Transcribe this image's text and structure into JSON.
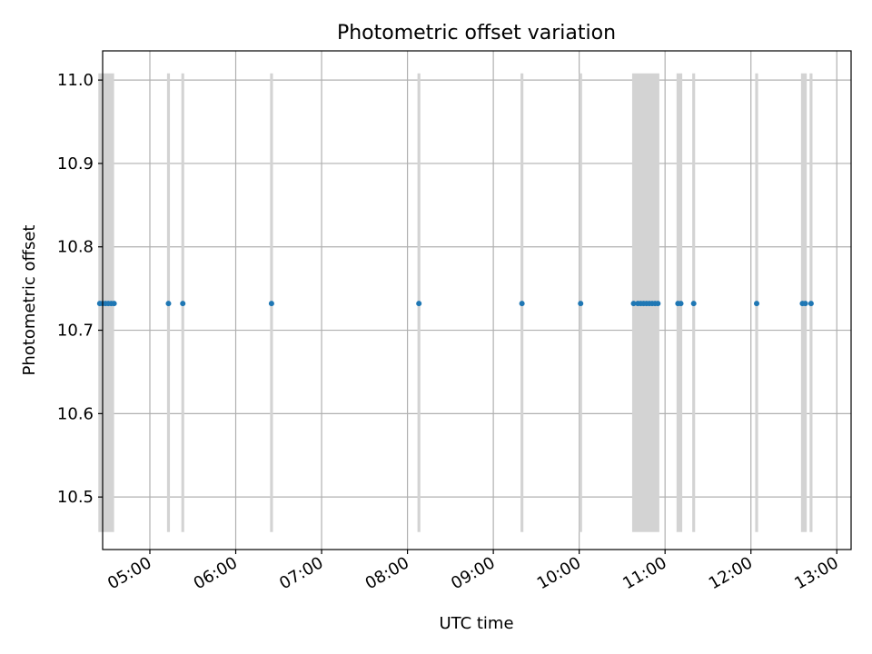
{
  "chart_data": {
    "type": "scatter",
    "title": "Photometric offset variation",
    "xlabel": "UTC time",
    "ylabel": "Photometric offset",
    "grid": true,
    "xlim": [
      "04:27",
      "13:10"
    ],
    "ylim": [
      10.437,
      11.035
    ],
    "x_ticks": [
      "05:00",
      "06:00",
      "07:00",
      "08:00",
      "09:00",
      "10:00",
      "11:00",
      "12:00",
      "13:00"
    ],
    "y_ticks": [
      10.5,
      10.6,
      10.7,
      10.8,
      10.9,
      11.0
    ],
    "point_color": "#1f77b4",
    "band_color": "#d3d3d3",
    "band_range": [
      10.458,
      11.008
    ],
    "points": [
      {
        "t": "04:25",
        "y": 10.732
      },
      {
        "t": "04:27",
        "y": 10.732
      },
      {
        "t": "04:29",
        "y": 10.732
      },
      {
        "t": "04:31",
        "y": 10.732
      },
      {
        "t": "04:33",
        "y": 10.732
      },
      {
        "t": "04:35",
        "y": 10.732
      },
      {
        "t": "05:13",
        "y": 10.732
      },
      {
        "t": "05:23",
        "y": 10.732
      },
      {
        "t": "06:25",
        "y": 10.732
      },
      {
        "t": "08:08",
        "y": 10.732
      },
      {
        "t": "09:20",
        "y": 10.732
      },
      {
        "t": "10:01",
        "y": 10.732
      },
      {
        "t": "10:38",
        "y": 10.732
      },
      {
        "t": "10:41",
        "y": 10.732
      },
      {
        "t": "10:43",
        "y": 10.732
      },
      {
        "t": "10:45",
        "y": 10.732
      },
      {
        "t": "10:47",
        "y": 10.732
      },
      {
        "t": "10:49",
        "y": 10.732
      },
      {
        "t": "10:51",
        "y": 10.732
      },
      {
        "t": "10:53",
        "y": 10.732
      },
      {
        "t": "10:55",
        "y": 10.732
      },
      {
        "t": "11:09",
        "y": 10.732
      },
      {
        "t": "11:11",
        "y": 10.732
      },
      {
        "t": "11:20",
        "y": 10.732
      },
      {
        "t": "12:04",
        "y": 10.732
      },
      {
        "t": "12:36",
        "y": 10.732
      },
      {
        "t": "12:38",
        "y": 10.732
      },
      {
        "t": "12:42",
        "y": 10.732
      }
    ],
    "bands": [
      {
        "start": "04:24",
        "end": "04:35"
      },
      {
        "start": "05:12",
        "end": "05:14"
      },
      {
        "start": "05:22",
        "end": "05:24"
      },
      {
        "start": "06:24",
        "end": "06:26"
      },
      {
        "start": "08:07",
        "end": "08:09"
      },
      {
        "start": "09:19",
        "end": "09:21"
      },
      {
        "start": "10:00",
        "end": "10:02"
      },
      {
        "start": "10:37",
        "end": "10:56"
      },
      {
        "start": "11:08",
        "end": "11:12"
      },
      {
        "start": "11:19",
        "end": "11:21"
      },
      {
        "start": "12:03",
        "end": "12:05"
      },
      {
        "start": "12:35",
        "end": "12:39"
      },
      {
        "start": "12:41",
        "end": "12:43"
      }
    ]
  }
}
